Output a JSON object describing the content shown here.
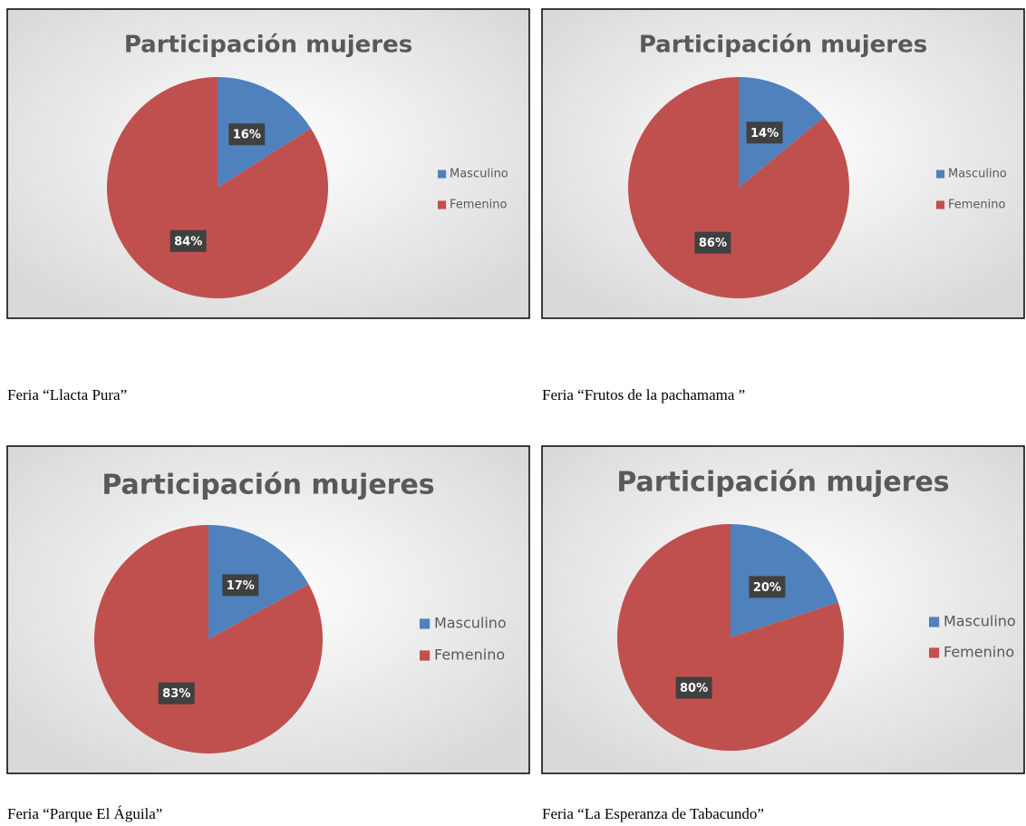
{
  "chart_data": [
    {
      "type": "pie",
      "title": "Participación mujeres",
      "categories": [
        "Masculino",
        "Femenino"
      ],
      "values": [
        16,
        84
      ],
      "value_labels": [
        "16%",
        "84%"
      ],
      "colors": [
        "#4f81bd",
        "#c0504d"
      ],
      "legend": "right"
    },
    {
      "type": "pie",
      "title": "Participación mujeres",
      "categories": [
        "Masculino",
        "Femenino"
      ],
      "values": [
        14,
        86
      ],
      "value_labels": [
        "14%",
        "86%"
      ],
      "colors": [
        "#4f81bd",
        "#c0504d"
      ],
      "legend": "right"
    },
    {
      "type": "pie",
      "title": "Participación mujeres",
      "categories": [
        "Masculino",
        "Femenino"
      ],
      "values": [
        17,
        83
      ],
      "value_labels": [
        "17%",
        "83%"
      ],
      "colors": [
        "#4f81bd",
        "#c0504d"
      ],
      "legend": "right"
    },
    {
      "type": "pie",
      "title": "Participación mujeres",
      "categories": [
        "Masculino",
        "Femenino"
      ],
      "values": [
        20,
        80
      ],
      "value_labels": [
        "20%",
        "80%"
      ],
      "colors": [
        "#4f81bd",
        "#c0504d"
      ],
      "legend": "right"
    }
  ],
  "captions": [
    "Feria “Llacta Pura”",
    "Feria “Frutos de la pachamama ”",
    "Feria “Parque El Águila”",
    "Feria “La Esperanza de Tabacundo”"
  ]
}
